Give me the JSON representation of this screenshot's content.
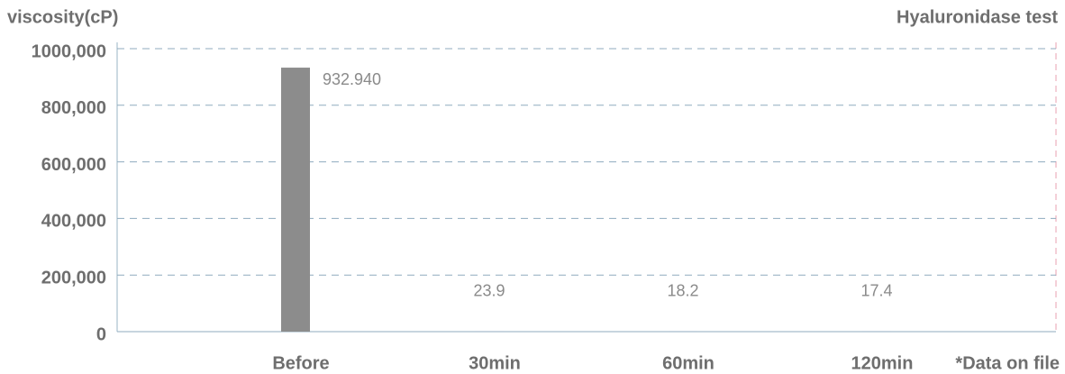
{
  "chart_data": {
    "type": "bar",
    "title": "Hyaluronidase test",
    "y_label": "viscosity(cP)",
    "note": "*Data on file",
    "categories": [
      "Before",
      "30min",
      "60min",
      "120min"
    ],
    "values": [
      932940,
      23.9,
      18.2,
      17.4
    ],
    "value_labels": [
      "932.940",
      "23.9",
      "18.2",
      "17.4"
    ],
    "color": "#8c8c8c",
    "ylim": [
      0,
      1000000
    ],
    "yticks": [
      0,
      {
        "value": 200000,
        "label": "200,000"
      },
      {
        "value": 400000,
        "label": "400,000"
      },
      {
        "value": 600000,
        "label": "600,000"
      },
      {
        "value": 800000,
        "label": "800,000"
      },
      {
        "value": 1000000,
        "label": "1000,000"
      }
    ],
    "grid": true
  }
}
